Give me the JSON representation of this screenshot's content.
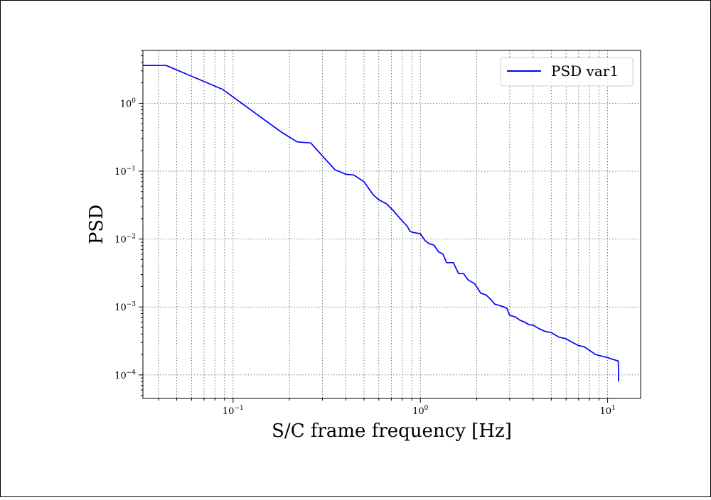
{
  "chart_data": {
    "type": "line",
    "title": "",
    "xlabel": "S/C frame frequency [Hz]",
    "ylabel": "PSD",
    "xscale": "log",
    "yscale": "log",
    "xlim": [
      0.033,
      15
    ],
    "ylim": [
      4.5e-05,
      6
    ],
    "grid": true,
    "legend_position": "top-right",
    "x_ticks": [
      {
        "value": 0.1,
        "base": "10",
        "exp": "−1"
      },
      {
        "value": 1,
        "base": "10",
        "exp": "0"
      },
      {
        "value": 10,
        "base": "10",
        "exp": "1"
      }
    ],
    "y_ticks": [
      {
        "value": 1,
        "base": "10",
        "exp": "0"
      },
      {
        "value": 0.1,
        "base": "10",
        "exp": "−1"
      },
      {
        "value": 0.01,
        "base": "10",
        "exp": "−2"
      },
      {
        "value": 0.001,
        "base": "10",
        "exp": "−3"
      },
      {
        "value": 0.0001,
        "base": "10",
        "exp": "−4"
      }
    ],
    "series": [
      {
        "name": "PSD var1",
        "color": "#0000ff",
        "points": [
          [
            0.033,
            3.6
          ],
          [
            0.044,
            3.6
          ],
          [
            0.088,
            1.6
          ],
          [
            0.18,
            0.38
          ],
          [
            0.22,
            0.27
          ],
          [
            0.26,
            0.26
          ],
          [
            0.35,
            0.105
          ],
          [
            0.4,
            0.09
          ],
          [
            0.44,
            0.088
          ],
          [
            0.5,
            0.07
          ],
          [
            0.56,
            0.045
          ],
          [
            0.6,
            0.038
          ],
          [
            0.66,
            0.033
          ],
          [
            0.72,
            0.026
          ],
          [
            0.78,
            0.02
          ],
          [
            0.85,
            0.0155
          ],
          [
            0.88,
            0.013
          ],
          [
            0.92,
            0.0125
          ],
          [
            1.0,
            0.012
          ],
          [
            1.06,
            0.0095
          ],
          [
            1.12,
            0.0085
          ],
          [
            1.18,
            0.0082
          ],
          [
            1.25,
            0.0065
          ],
          [
            1.32,
            0.006
          ],
          [
            1.38,
            0.0045
          ],
          [
            1.5,
            0.0045
          ],
          [
            1.6,
            0.0031
          ],
          [
            1.7,
            0.0031
          ],
          [
            1.8,
            0.0025
          ],
          [
            1.95,
            0.0022
          ],
          [
            2.1,
            0.0016
          ],
          [
            2.25,
            0.0015
          ],
          [
            2.4,
            0.00125
          ],
          [
            2.5,
            0.0011
          ],
          [
            2.65,
            0.00105
          ],
          [
            2.8,
            0.001
          ],
          [
            2.9,
            0.00095
          ],
          [
            3.0,
            0.00075
          ],
          [
            3.2,
            0.00072
          ],
          [
            3.4,
            0.00064
          ],
          [
            3.6,
            0.0006
          ],
          [
            3.8,
            0.00055
          ],
          [
            4.0,
            0.00054
          ],
          [
            4.3,
            0.00048
          ],
          [
            4.6,
            0.00044
          ],
          [
            5.0,
            0.00042
          ],
          [
            5.5,
            0.00036
          ],
          [
            6.0,
            0.00034
          ],
          [
            6.5,
            0.0003
          ],
          [
            7.0,
            0.00027
          ],
          [
            7.5,
            0.00026
          ],
          [
            8.0,
            0.00023
          ],
          [
            8.6,
            0.0002
          ],
          [
            9.2,
            0.00019
          ],
          [
            10.0,
            0.00018
          ],
          [
            10.6,
            0.00017
          ],
          [
            11.0,
            0.000165
          ],
          [
            11.4,
            0.00016
          ],
          [
            11.45,
            8e-05
          ]
        ]
      }
    ]
  }
}
